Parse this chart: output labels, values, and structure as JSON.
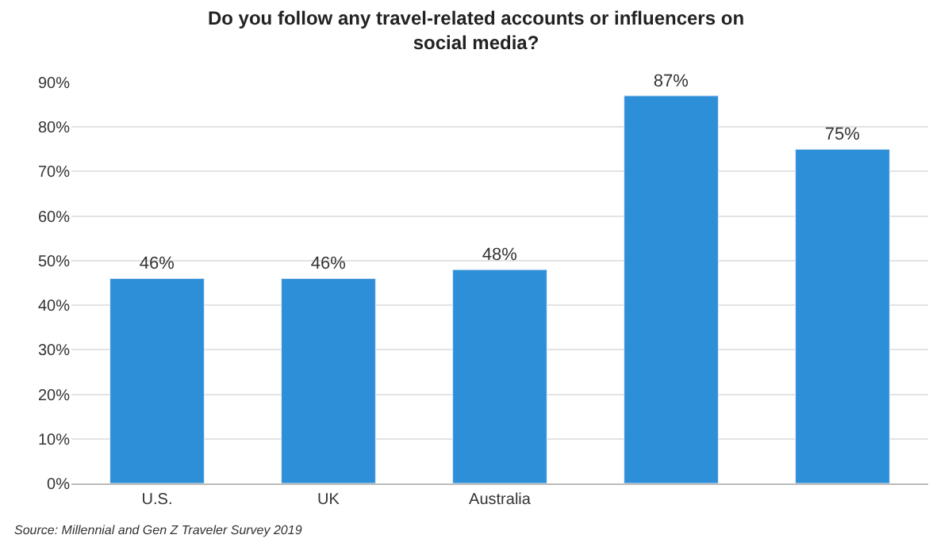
{
  "chart_data": {
    "type": "bar",
    "title": "Do you follow any travel-related accounts or influencers on social media?",
    "categories": [
      "U.S.",
      "UK",
      "Australia",
      null,
      null
    ],
    "values": [
      46,
      46,
      48,
      87,
      75
    ],
    "value_labels": [
      "46%",
      "46%",
      "48%",
      "87%",
      "75%"
    ],
    "color": "#2e8fd9",
    "ylim": [
      0,
      90
    ],
    "yticks": [
      {
        "value": 0,
        "label": "0%"
      },
      {
        "value": 10,
        "label": "10%"
      },
      {
        "value": 20,
        "label": "20%"
      },
      {
        "value": 30,
        "label": "30%"
      },
      {
        "value": 40,
        "label": "40%"
      },
      {
        "value": 50,
        "label": "50%"
      },
      {
        "value": 60,
        "label": "60%"
      },
      {
        "value": 70,
        "label": "70%"
      },
      {
        "value": 80,
        "label": "80%"
      },
      {
        "value": 90,
        "label": "90%"
      }
    ],
    "grid": "y",
    "annotations": [
      "Source: Millennial and Gen Z Traveler Survey 2019"
    ]
  }
}
